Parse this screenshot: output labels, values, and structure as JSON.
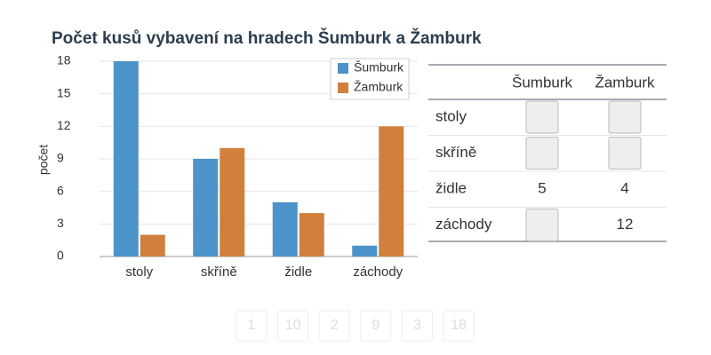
{
  "chart_data": {
    "type": "bar",
    "title": "Počet kusů vybavení na hradech Šumburk a Žamburk",
    "y_label": "počet",
    "categories": [
      "stoly",
      "skříně",
      "židle",
      "záchody"
    ],
    "series": [
      {
        "name": "Šumburk",
        "color": "#4b93c8",
        "values": [
          18,
          9,
          5,
          1
        ]
      },
      {
        "name": "Žamburk",
        "color": "#d0803c",
        "values": [
          2,
          10,
          4,
          12
        ]
      }
    ],
    "ylim": [
      0,
      18
    ],
    "yticks": [
      0,
      3,
      6,
      9,
      12,
      15,
      18
    ],
    "grid": true,
    "legend": "top-right"
  },
  "table": {
    "columns": [
      "Šumburk",
      "Žamburk"
    ],
    "rows": [
      {
        "label": "stoly",
        "cells": [
          null,
          null
        ]
      },
      {
        "label": "skříně",
        "cells": [
          null,
          null
        ]
      },
      {
        "label": "židle",
        "cells": [
          5,
          4
        ]
      },
      {
        "label": "záchody",
        "cells": [
          null,
          12
        ]
      }
    ]
  },
  "tiles": [
    1,
    10,
    2,
    9,
    3,
    18
  ]
}
